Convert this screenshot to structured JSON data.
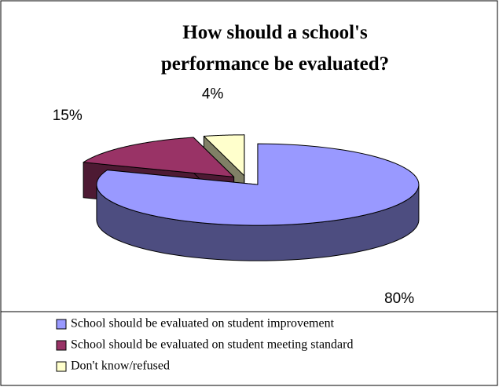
{
  "chart_data": {
    "type": "pie3d",
    "title": "How should a school's performance be evaluated?",
    "categories": [
      "School should be evaluated on student improvement",
      "School should be evaluated on student meeting standard",
      "Don't know/refused"
    ],
    "values": [
      80,
      15,
      4
    ],
    "value_labels": [
      "80%",
      "15%",
      "4%"
    ],
    "colors": [
      "#9999ff",
      "#993366",
      "#ffffcc"
    ],
    "legend": "bottom"
  }
}
